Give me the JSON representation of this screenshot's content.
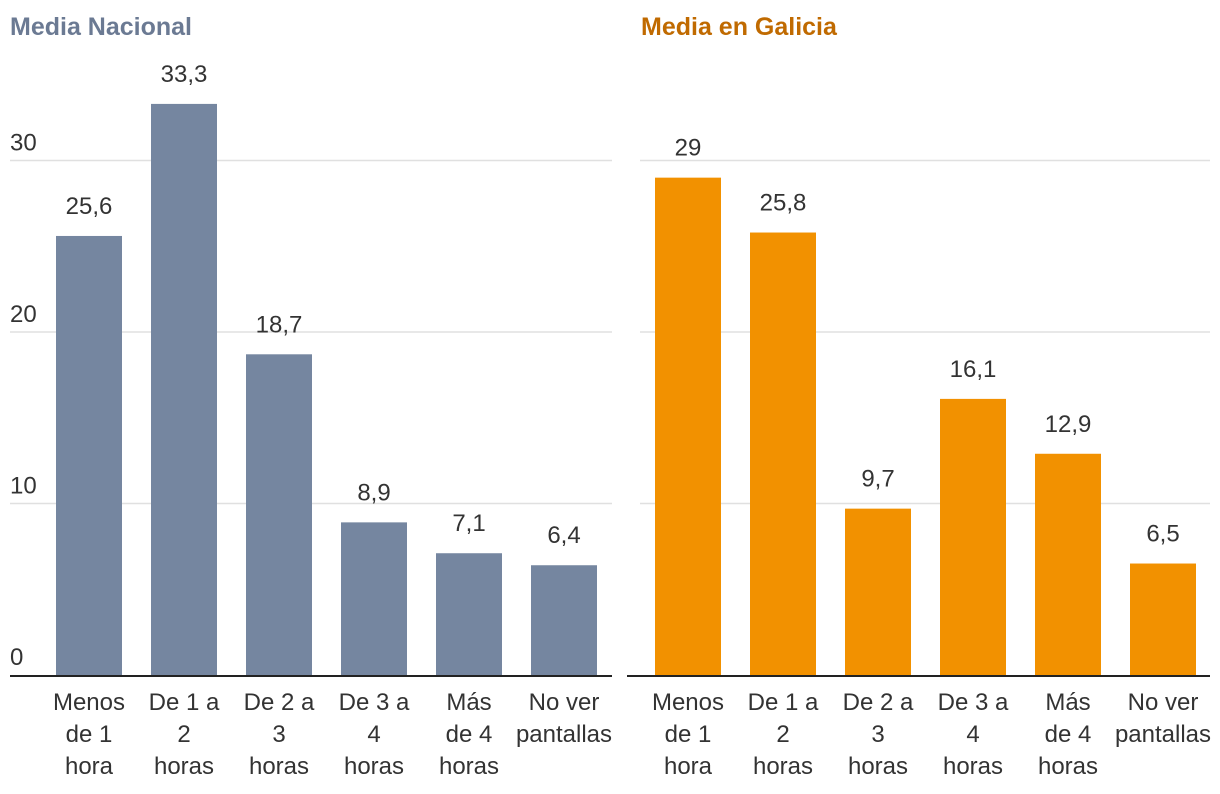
{
  "chart_data": [
    {
      "type": "bar",
      "title": "Media Nacional",
      "title_color": "#6b7a93",
      "bar_color": "#7586a0",
      "categories": [
        [
          "Menos",
          "de 1",
          "hora"
        ],
        [
          "De 1 a",
          "2",
          "horas"
        ],
        [
          "De 2 a",
          "3",
          "horas"
        ],
        [
          "De 3 a",
          "4",
          "horas"
        ],
        [
          "Más",
          "de 4",
          "horas"
        ],
        [
          "No ver",
          "pantallas"
        ]
      ],
      "values": [
        25.6,
        33.3,
        18.7,
        8.9,
        7.1,
        6.4
      ],
      "value_labels": [
        "25,6",
        "33,3",
        "18,7",
        "8,9",
        "7,1",
        "6,4"
      ],
      "yticks": [
        0,
        10,
        20,
        30
      ],
      "ytick_labels": [
        "0",
        "10",
        "20",
        "30"
      ],
      "ylim": [
        0,
        35
      ],
      "grid": true
    },
    {
      "type": "bar",
      "title": "Media en Galicia",
      "title_color": "#c06a00",
      "bar_color": "#f29100",
      "categories": [
        [
          "Menos",
          "de 1",
          "hora"
        ],
        [
          "De 1 a",
          "2",
          "horas"
        ],
        [
          "De 2 a",
          "3",
          "horas"
        ],
        [
          "De 3 a",
          "4",
          "horas"
        ],
        [
          "Más",
          "de 4",
          "horas"
        ],
        [
          "No ver",
          "pantallas"
        ]
      ],
      "values": [
        29,
        25.8,
        9.7,
        16.1,
        12.9,
        6.5
      ],
      "value_labels": [
        "29",
        "25,8",
        "9,7",
        "16,1",
        "12,9",
        "6,5"
      ],
      "yticks": [
        0,
        10,
        20,
        30
      ],
      "ylim": [
        0,
        35
      ],
      "grid": true
    }
  ]
}
